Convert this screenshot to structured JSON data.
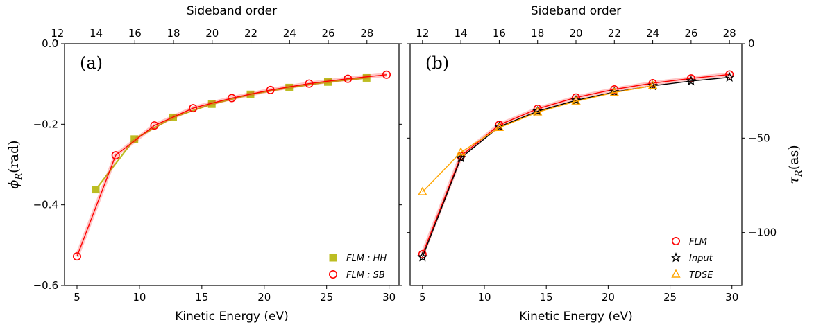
{
  "chart_data": [
    {
      "type": "line",
      "panel_label": "(a)",
      "xlabel": "Kinetic Energy (eV)",
      "top_xlabel": "Sideband order",
      "ylabel": "ϕ_R(rad)",
      "ylabel_main": "ϕ",
      "ylabel_sub": "R",
      "ylabel_unit": "(rad)",
      "xlim": [
        4,
        30.8
      ],
      "ylim": [
        -0.6,
        0.0
      ],
      "xticks": [
        5,
        10,
        15,
        20,
        25,
        30
      ],
      "yticks": [
        -0.6,
        -0.4,
        -0.2,
        0.0
      ],
      "top_ticks": [
        12,
        14,
        16,
        18,
        20,
        22,
        24,
        26,
        28
      ],
      "top_ticks_energy": [
        3.43,
        6.53,
        9.63,
        12.73,
        15.83,
        18.93,
        22.03,
        25.13,
        28.23
      ],
      "top_tick_note": "odd",
      "grid": false,
      "legend_position": "bottom-right",
      "series": [
        {
          "name": "FLM : HH",
          "marker": "square",
          "color": "#bcbd22",
          "x": [
            6.5,
            9.6,
            12.7,
            15.8,
            18.9,
            22.0,
            25.1,
            28.2
          ],
          "y": [
            -0.362,
            -0.237,
            -0.183,
            -0.15,
            -0.126,
            -0.109,
            -0.095,
            -0.085
          ]
        },
        {
          "name": "FLM : SB",
          "marker": "circle-open",
          "color": "#ff0000",
          "x": [
            5.0,
            8.1,
            11.2,
            14.3,
            17.4,
            20.5,
            23.6,
            26.7,
            29.8
          ],
          "y": [
            -0.528,
            -0.277,
            -0.203,
            -0.16,
            -0.135,
            -0.115,
            -0.099,
            -0.087,
            -0.077
          ]
        }
      ]
    },
    {
      "type": "line",
      "panel_label": "(b)",
      "xlabel": "Kinetic Energy (eV)",
      "top_xlabel": "Sideband order",
      "ylabel": "τ_R(as)",
      "ylabel_main": "τ",
      "ylabel_sub": "R",
      "ylabel_unit": "(as)",
      "xlim": [
        4,
        30.8
      ],
      "ylim": [
        -128,
        0
      ],
      "xticks": [
        5,
        10,
        15,
        20,
        25,
        30
      ],
      "yticks": [
        -100,
        -50,
        0
      ],
      "top_ticks": [
        12,
        14,
        16,
        18,
        20,
        22,
        24,
        26,
        28
      ],
      "top_ticks_energy": [
        5.0,
        8.1,
        11.2,
        14.3,
        17.4,
        20.5,
        23.6,
        26.7,
        29.8
      ],
      "grid": false,
      "legend_position": "bottom-right",
      "series": [
        {
          "name": "FLM",
          "marker": "circle-open",
          "color": "#ff0000",
          "x": [
            5.0,
            8.1,
            11.2,
            14.3,
            17.4,
            20.5,
            23.6,
            26.7,
            29.8
          ],
          "y": [
            -111.5,
            -59.5,
            -43.0,
            -34.5,
            -28.5,
            -24.2,
            -20.9,
            -18.4,
            -16.3
          ]
        },
        {
          "name": "Input",
          "marker": "star-open",
          "color": "#000000",
          "x": [
            5.0,
            8.1,
            11.2,
            14.3,
            17.4,
            20.5,
            23.6,
            26.7,
            29.8
          ],
          "y": [
            -113.0,
            -60.5,
            -44.0,
            -35.8,
            -30.0,
            -25.6,
            -22.3,
            -19.8,
            -17.8
          ]
        },
        {
          "name": "TDSE",
          "marker": "triangle-open",
          "color": "#ffa500",
          "x": [
            5.0,
            8.1,
            11.2,
            14.3,
            17.4,
            20.5,
            23.6
          ],
          "y": [
            -78.5,
            -57.5,
            -44.5,
            -36.3,
            -30.5,
            -25.9,
            -22.2
          ]
        }
      ]
    }
  ]
}
